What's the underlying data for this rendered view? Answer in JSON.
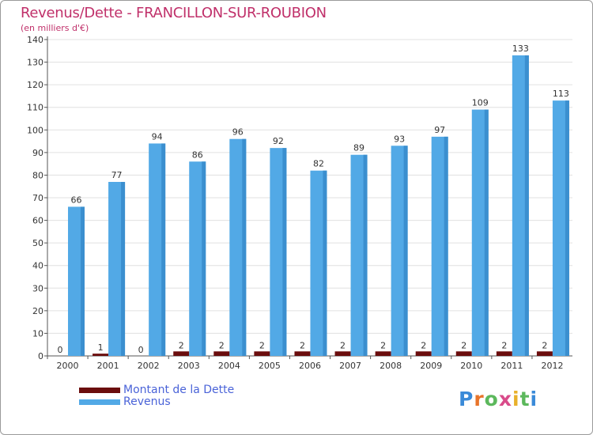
{
  "title": "Revenus/Dette - FRANCILLON-SUR-ROUBION",
  "subtitle": "(en milliers d'€)",
  "legend": {
    "debt": "Montant de la Dette",
    "revenue": "Revenus"
  },
  "logo": {
    "letters": [
      "P",
      "r",
      "o",
      "x",
      "i",
      "t",
      "i"
    ],
    "colors": [
      "#3a8ad8",
      "#e8742a",
      "#5cb85c",
      "#d94b8a",
      "#e8b02a",
      "#5cb85c",
      "#3a8ad8"
    ]
  },
  "colors": {
    "revenue": "#52a9e6",
    "revenue_dark": "#3b8fcf",
    "debt": "#6b0d0d",
    "grid": "#e0e0e0"
  },
  "chart_data": {
    "type": "bar",
    "title": "Revenus/Dette - FRANCILLON-SUR-ROUBION",
    "ylabel": "(en milliers d'€)",
    "xlabel": "",
    "categories": [
      "2000",
      "2001",
      "2002",
      "2003",
      "2004",
      "2005",
      "2006",
      "2007",
      "2008",
      "2009",
      "2010",
      "2011",
      "2012"
    ],
    "series": [
      {
        "name": "Montant de la Dette",
        "values": [
          0,
          1,
          0,
          2,
          2,
          2,
          2,
          2,
          2,
          2,
          2,
          2,
          2
        ]
      },
      {
        "name": "Revenus",
        "values": [
          66,
          77,
          94,
          86,
          96,
          92,
          82,
          89,
          93,
          97,
          109,
          133,
          113
        ]
      }
    ],
    "ylim": [
      0,
      140
    ],
    "yticks": [
      0,
      10,
      20,
      30,
      40,
      50,
      60,
      70,
      80,
      90,
      100,
      110,
      120,
      130,
      140
    ],
    "grid": true,
    "legend_position": "bottom-left"
  }
}
